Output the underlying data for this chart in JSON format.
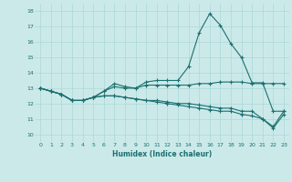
{
  "title": "",
  "xlabel": "Humidex (Indice chaleur)",
  "ylabel": "",
  "xlim": [
    -0.5,
    23.5
  ],
  "ylim": [
    9.5,
    18.5
  ],
  "yticks": [
    10,
    11,
    12,
    13,
    14,
    15,
    16,
    17,
    18
  ],
  "xticks": [
    0,
    1,
    2,
    3,
    4,
    5,
    6,
    7,
    8,
    9,
    10,
    11,
    12,
    13,
    14,
    15,
    16,
    17,
    18,
    19,
    20,
    21,
    22,
    23
  ],
  "background_color": "#cce9e9",
  "line_color": "#1a7070",
  "grid_color": "#aad8d8",
  "lines": [
    [
      13.0,
      12.8,
      12.6,
      12.2,
      12.2,
      12.4,
      12.8,
      13.3,
      13.1,
      13.0,
      13.4,
      13.5,
      13.5,
      13.5,
      14.4,
      16.6,
      17.85,
      17.1,
      15.9,
      15.0,
      13.35,
      13.35,
      11.5,
      11.5
    ],
    [
      13.0,
      12.8,
      12.6,
      12.2,
      12.2,
      12.4,
      12.8,
      13.1,
      13.0,
      13.0,
      13.2,
      13.2,
      13.2,
      13.2,
      13.2,
      13.3,
      13.3,
      13.4,
      13.4,
      13.4,
      13.3,
      13.3,
      13.3,
      13.3
    ],
    [
      13.0,
      12.8,
      12.6,
      12.2,
      12.2,
      12.4,
      12.5,
      12.5,
      12.4,
      12.3,
      12.2,
      12.2,
      12.1,
      12.0,
      12.0,
      11.9,
      11.8,
      11.7,
      11.7,
      11.5,
      11.5,
      11.0,
      10.5,
      11.5
    ],
    [
      13.0,
      12.8,
      12.6,
      12.2,
      12.2,
      12.4,
      12.5,
      12.5,
      12.4,
      12.3,
      12.2,
      12.1,
      12.0,
      11.9,
      11.8,
      11.7,
      11.6,
      11.5,
      11.5,
      11.3,
      11.2,
      11.0,
      10.4,
      11.3
    ]
  ]
}
